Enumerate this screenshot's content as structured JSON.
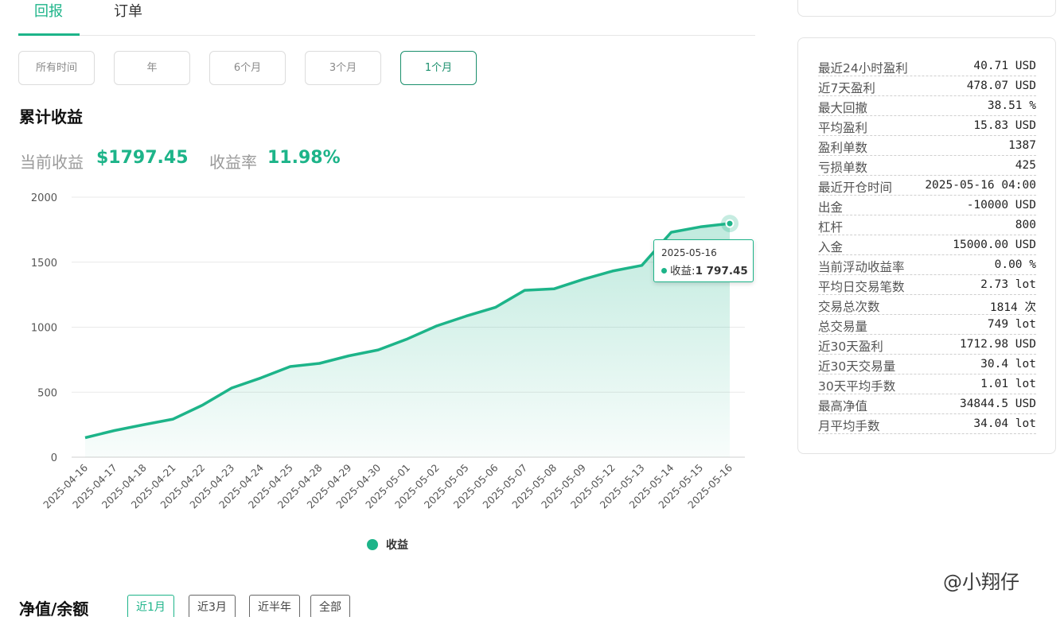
{
  "tabs": [
    {
      "label": "回报",
      "active": true
    },
    {
      "label": "订单",
      "active": false
    }
  ],
  "ranges": [
    {
      "label": "所有时间",
      "active": false
    },
    {
      "label": "年",
      "active": false
    },
    {
      "label": "6个月",
      "active": false
    },
    {
      "label": "3个月",
      "active": false
    },
    {
      "label": "1个月",
      "active": true
    }
  ],
  "section_title": "累计收益",
  "metrics": {
    "current_label": "当前收益",
    "current_value": "$1797.45",
    "rate_label": "收益率",
    "rate_value": "11.98%"
  },
  "colors": {
    "accent": "#1db489",
    "accent_dark": "#1a8f6c"
  },
  "chart_data": {
    "type": "area",
    "categories": [
      "2025-04-16",
      "2025-04-17",
      "2025-04-18",
      "2025-04-21",
      "2025-04-22",
      "2025-04-23",
      "2025-04-24",
      "2025-04-25",
      "2025-04-28",
      "2025-04-29",
      "2025-04-30",
      "2025-05-01",
      "2025-05-02",
      "2025-05-05",
      "2025-05-06",
      "2025-05-07",
      "2025-05-08",
      "2025-05-09",
      "2025-05-12",
      "2025-05-13",
      "2025-05-14",
      "2025-05-15",
      "2025-05-16"
    ],
    "series": [
      {
        "name": "收益",
        "values": [
          150,
          205,
          250,
          293,
          400,
          532,
          610,
          697,
          722,
          780,
          825,
          910,
          1010,
          1085,
          1152,
          1284,
          1295,
          1368,
          1432,
          1475,
          1730,
          1772,
          1797.45
        ]
      }
    ],
    "yticks": [
      0,
      500,
      1000,
      1500,
      2000
    ],
    "ylim": [
      0,
      2000
    ],
    "grid": true,
    "legend": "bottom-center",
    "tooltip": {
      "date": "2025-05-16",
      "label": "收益:",
      "value": "1 797.45"
    }
  },
  "equity": {
    "title": "净值/余额",
    "periods": [
      {
        "label": "近1月",
        "active": true
      },
      {
        "label": "近3月",
        "active": false
      },
      {
        "label": "近半年",
        "active": false
      },
      {
        "label": "全部",
        "active": false
      }
    ]
  },
  "stats": [
    {
      "label": "最近24小时盈利",
      "value": "40.71 USD"
    },
    {
      "label": "近7天盈利",
      "value": "478.07 USD"
    },
    {
      "label": "最大回撤",
      "value": "38.51 %"
    },
    {
      "label": "平均盈利",
      "value": "15.83 USD"
    },
    {
      "label": "盈利单数",
      "value": "1387"
    },
    {
      "label": "亏损单数",
      "value": "425"
    },
    {
      "label": "最近开仓时间",
      "value": "2025-05-16 04:00"
    },
    {
      "label": "出金",
      "value": "-10000 USD"
    },
    {
      "label": "杠杆",
      "value": "800"
    },
    {
      "label": "入金",
      "value": "15000.00 USD"
    },
    {
      "label": "当前浮动收益率",
      "value": "0.00 %"
    },
    {
      "label": "平均日交易笔数",
      "value": "2.73 lot"
    },
    {
      "label": "交易总次数",
      "value": "1814 次"
    },
    {
      "label": "总交易量",
      "value": "749 lot"
    },
    {
      "label": "近30天盈利",
      "value": "1712.98 USD"
    },
    {
      "label": "近30天交易量",
      "value": "30.4 lot"
    },
    {
      "label": "30天平均手数",
      "value": "1.01 lot"
    },
    {
      "label": "最高净值",
      "value": "34844.5 USD"
    },
    {
      "label": "月平均手数",
      "value": "34.04 lot"
    }
  ],
  "watermark": "@小翔仔"
}
